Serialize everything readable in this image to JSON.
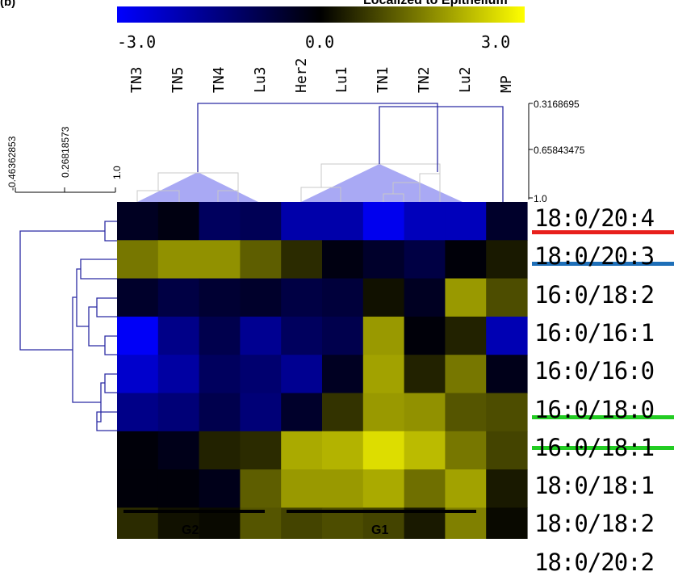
{
  "panel_label": "(b)",
  "title": "Localized to Epithelium",
  "colors": {
    "low": "#0000ff",
    "mid": "#000000",
    "high": "#ffff00"
  },
  "colorbar": {
    "ticks": [
      "-3.0",
      "0.0",
      "3.0"
    ]
  },
  "col_scale": {
    "ticks": [
      "0.3168695",
      "0.65843475",
      "1.0"
    ]
  },
  "row_scale": {
    "ticks": [
      "-0.46362853",
      "0.26818573",
      "1.0"
    ]
  },
  "groups": [
    {
      "label": "G2"
    },
    {
      "label": "G1"
    }
  ],
  "row_markers": {
    "red": "#e8201c",
    "blue": "#1e6fb8",
    "green": "#22cc22"
  },
  "chart_data": {
    "type": "heatmap",
    "title": "Localized to Epithelium",
    "columns": [
      "TN3",
      "TN5",
      "TN4",
      "Lu3",
      "Her2",
      "Lu1",
      "TN1",
      "TN2",
      "Lu2",
      "MP"
    ],
    "rows": [
      "18:0/20:4",
      "18:0/20:3",
      "16:0/18:2",
      "16:0/16:1",
      "16:0/16:0",
      "16:0/18:0",
      "16:0/18:1",
      "18:0/18:1",
      "18:0/18:2",
      "18:0/20:2"
    ],
    "color_range": [
      -3.0,
      3.0
    ],
    "values": [
      [
        -0.4,
        -0.2,
        -1.1,
        -1.0,
        -2.0,
        -2.0,
        -2.8,
        -2.2,
        -2.2,
        -0.5
      ],
      [
        1.4,
        1.7,
        1.7,
        1.1,
        0.5,
        -0.2,
        -0.5,
        -0.8,
        -0.1,
        0.3
      ],
      [
        -0.5,
        -0.8,
        -0.6,
        -0.5,
        -0.8,
        -0.7,
        0.2,
        -0.4,
        1.8,
        0.9
      ],
      [
        -2.9,
        -1.6,
        -0.9,
        -1.7,
        -1.1,
        -0.9,
        1.8,
        -0.1,
        0.4,
        -2.1
      ],
      [
        -2.4,
        -1.9,
        -1.1,
        -1.3,
        -1.7,
        -0.4,
        1.9,
        0.4,
        1.4,
        -0.3
      ],
      [
        -1.6,
        -1.4,
        -0.9,
        -1.4,
        -0.5,
        0.6,
        1.8,
        1.7,
        1.0,
        0.9
      ],
      [
        -0.1,
        -0.3,
        0.4,
        0.5,
        2.0,
        2.1,
        2.6,
        2.2,
        1.4,
        0.8
      ],
      [
        -0.1,
        -0.1,
        -0.3,
        1.1,
        1.8,
        1.8,
        2.0,
        1.3,
        1.9,
        0.3
      ],
      [
        0.5,
        0.2,
        0.1,
        1.0,
        0.8,
        0.9,
        0.8,
        0.3,
        1.5,
        0.1
      ],
      [
        0.4,
        0.0,
        0.9,
        1.9,
        0.7,
        0.6,
        0.8,
        0.7,
        1.6,
        -0.2
      ]
    ]
  }
}
